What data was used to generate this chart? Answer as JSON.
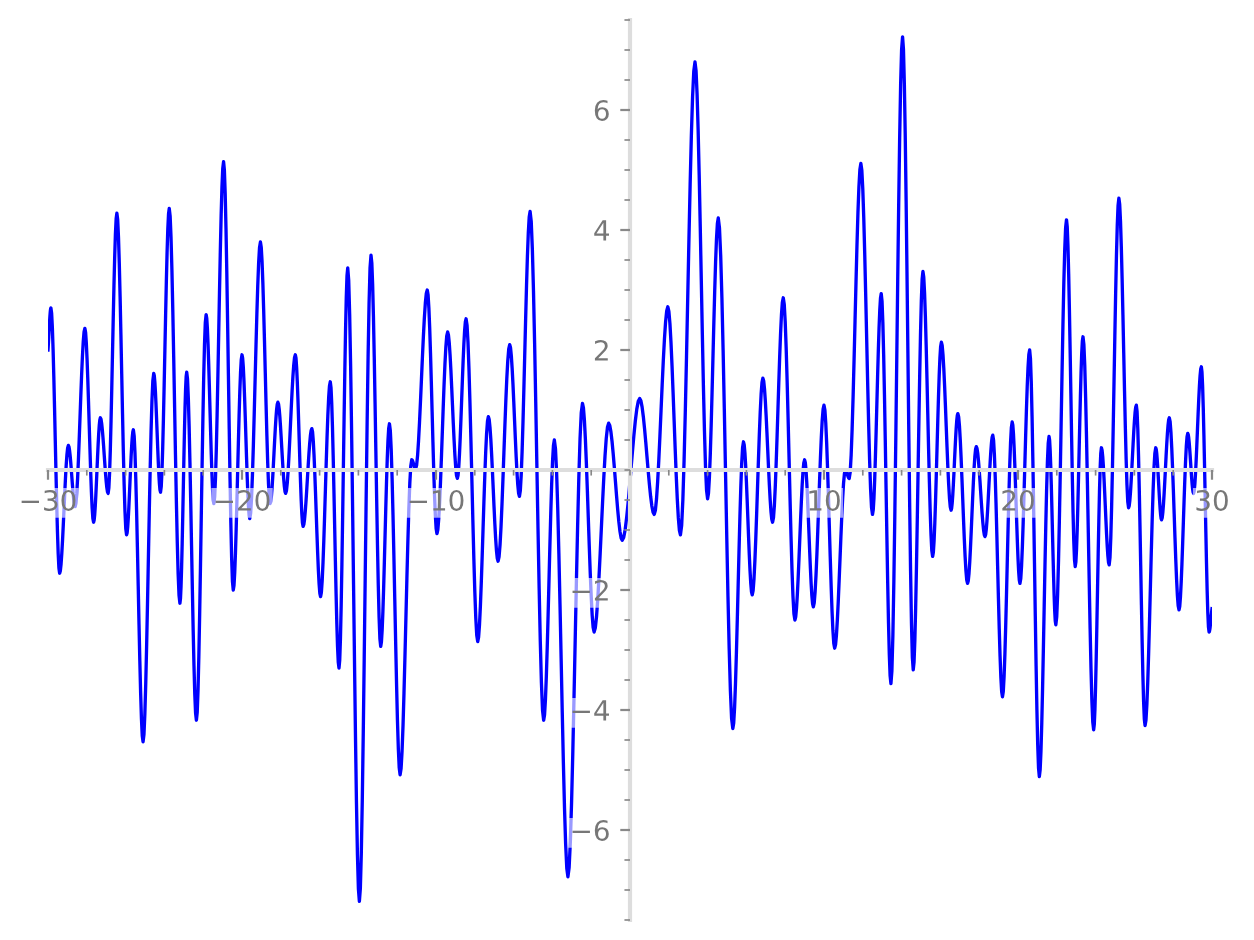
{
  "chart_data": {
    "type": "line",
    "xlim": [
      -30,
      30
    ],
    "ylim": [
      -7.5,
      7.5
    ],
    "xticks": [
      -30,
      -20,
      -10,
      10,
      20,
      30
    ],
    "yticks": [
      -6,
      -4,
      -2,
      2,
      4,
      6
    ],
    "grid": false,
    "legend": false,
    "marker": "none",
    "line_style": "solid",
    "series": [
      {
        "color": "#0000ff",
        "x": [
          -30.0,
          -29.85,
          -29.4,
          -28.95,
          -28.6,
          -28.1,
          -27.65,
          -27.3,
          -26.9,
          -26.45,
          -25.95,
          -25.6,
          -25.1,
          -24.55,
          -24.2,
          -23.75,
          -23.2,
          -22.85,
          -22.35,
          -21.85,
          -21.45,
          -20.95,
          -20.45,
          -20.0,
          -19.6,
          -19.05,
          -18.55,
          -18.15,
          -17.75,
          -17.25,
          -16.85,
          -16.4,
          -15.95,
          -15.45,
          -15.0,
          -14.55,
          -13.95,
          -13.35,
          -12.85,
          -12.4,
          -11.85,
          -11.25,
          -11.05,
          -10.45,
          -9.95,
          -9.4,
          -8.9,
          -8.45,
          -7.85,
          -7.3,
          -6.8,
          -6.2,
          -5.7,
          -5.15,
          -4.45,
          -3.9,
          -3.2,
          -2.45,
          -1.85,
          -1.1,
          -0.4,
          0.5,
          1.25,
          1.95,
          2.6,
          3.35,
          4.0,
          4.55,
          5.3,
          5.85,
          6.3,
          6.85,
          7.35,
          7.9,
          8.5,
          9.0,
          9.45,
          10.0,
          10.55,
          11.1,
          11.3,
          11.9,
          12.5,
          12.95,
          13.45,
          14.05,
          14.6,
          15.1,
          15.6,
          16.05,
          16.55,
          16.9,
          17.4,
          17.85,
          18.3,
          18.7,
          19.2,
          19.7,
          20.1,
          20.6,
          21.1,
          21.6,
          21.95,
          22.5,
          22.95,
          23.35,
          23.9,
          24.3,
          24.7,
          25.2,
          25.7,
          26.1,
          26.55,
          27.1,
          27.4,
          27.8,
          28.3,
          28.75,
          29.05,
          29.45,
          29.85,
          30.0
        ],
        "values": [
          2.0,
          2.7,
          -1.72,
          0.41,
          -0.61,
          2.36,
          -0.87,
          0.87,
          -0.39,
          4.28,
          -1.08,
          0.67,
          -4.53,
          1.61,
          -0.37,
          4.36,
          -2.22,
          1.63,
          -4.17,
          2.59,
          -0.56,
          5.14,
          -2.0,
          1.92,
          -0.81,
          3.8,
          -0.56,
          1.13,
          -0.39,
          1.92,
          -0.94,
          0.69,
          -2.11,
          1.47,
          -3.3,
          3.37,
          -7.19,
          3.58,
          -2.94,
          0.77,
          -5.08,
          0.17,
          0.02,
          3.0,
          -1.06,
          2.3,
          -0.14,
          2.52,
          -2.86,
          0.89,
          -1.52,
          2.09,
          -0.44,
          4.31,
          -4.17,
          0.5,
          -6.78,
          1.11,
          -2.7,
          0.78,
          -1.17,
          1.19,
          -0.74,
          2.72,
          -1.08,
          6.8,
          -0.48,
          4.2,
          -4.31,
          0.47,
          -2.08,
          1.53,
          -0.87,
          2.87,
          -2.5,
          0.17,
          -2.28,
          1.08,
          -2.97,
          0.0,
          -0.14,
          5.11,
          -0.74,
          2.94,
          -3.56,
          7.22,
          -3.33,
          3.31,
          -1.44,
          2.13,
          -0.67,
          0.94,
          -1.89,
          0.39,
          -1.11,
          0.58,
          -3.78,
          0.8,
          -1.89,
          2.0,
          -5.11,
          0.56,
          -2.58,
          4.17,
          -1.61,
          2.22,
          -4.33,
          0.37,
          -1.58,
          4.53,
          -0.63,
          1.08,
          -4.26,
          0.37,
          -0.83,
          0.87,
          -2.33,
          0.61,
          -0.39,
          1.72,
          -2.7,
          -2.31
        ]
      }
    ]
  }
}
